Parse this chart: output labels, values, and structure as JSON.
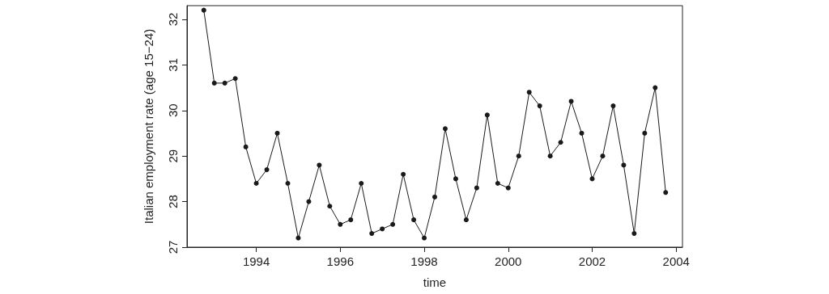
{
  "chart_data": {
    "type": "line",
    "xlabel": "time",
    "ylabel": "Italian employment rate (age 15−24)",
    "x": [
      1992.75,
      1993,
      1993.25,
      1993.5,
      1993.75,
      1994,
      1994.25,
      1994.5,
      1994.75,
      1995,
      1995.25,
      1995.5,
      1995.75,
      1996,
      1996.25,
      1996.5,
      1996.75,
      1997,
      1997.25,
      1997.5,
      1997.75,
      1998,
      1998.25,
      1998.5,
      1998.75,
      1999,
      1999.25,
      1999.5,
      1999.75,
      2000,
      2000.25,
      2000.5,
      2000.75,
      2001,
      2001.25,
      2001.5,
      2001.75,
      2002,
      2002.25,
      2002.5,
      2002.75,
      2003,
      2003.25,
      2003.5,
      2003.75
    ],
    "series": [
      {
        "color": "#1a1a1a",
        "values": [
          32.2,
          30.6,
          30.6,
          30.7,
          29.2,
          28.4,
          28.7,
          29.5,
          28.4,
          27.2,
          28.0,
          28.8,
          27.9,
          27.5,
          27.6,
          28.4,
          27.3,
          27.4,
          27.5,
          28.6,
          27.6,
          27.2,
          28.1,
          29.6,
          28.5,
          27.6,
          28.3,
          29.9,
          28.4,
          28.3,
          29.0,
          30.4,
          30.1,
          29.0,
          29.3,
          30.2,
          29.5,
          28.5,
          29.0,
          30.1,
          28.8,
          27.3,
          29.5,
          30.5,
          28.2
        ]
      }
    ],
    "xlim": [
      1992.35,
      2004.15
    ],
    "xticks": [
      1994,
      1996,
      1998,
      2000,
      2002,
      2004
    ],
    "ylim": [
      27,
      32.3
    ],
    "yticks": [
      27,
      28,
      29,
      30,
      31,
      32
    ],
    "grid": false,
    "marker": "circle",
    "line_style": "solid"
  }
}
